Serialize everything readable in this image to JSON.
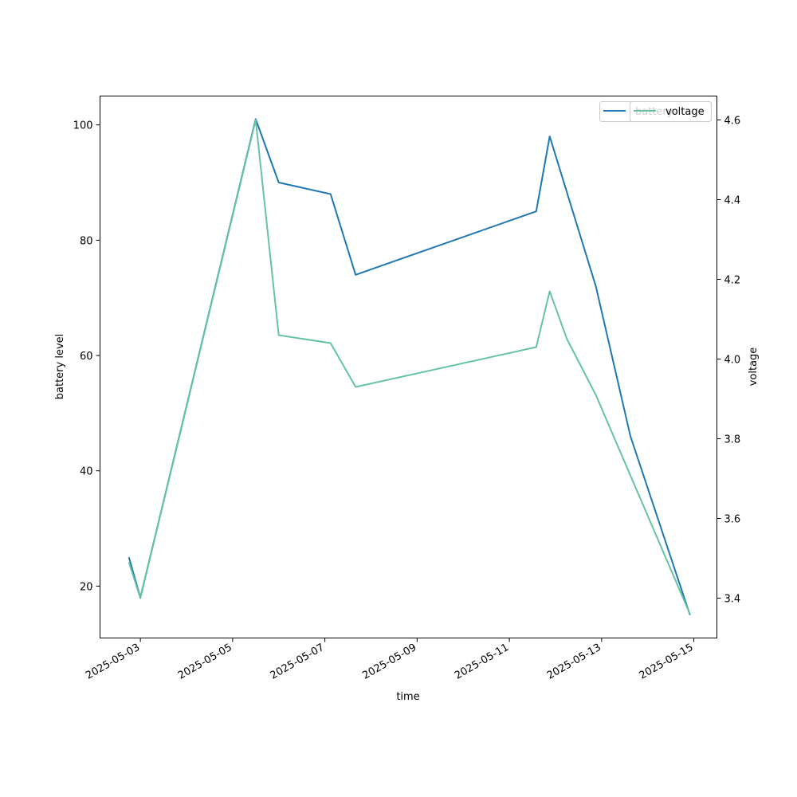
{
  "chart_data": {
    "type": "line",
    "xlabel": "time",
    "ylabel_left": "battery level",
    "ylabel_right": "voltage",
    "x_tick_labels": [
      "2025-05-03",
      "2025-05-05",
      "2025-05-07",
      "2025-05-09",
      "2025-05-11",
      "2025-05-13",
      "2025-05-15"
    ],
    "x_ticks": [
      "2025-05-03T00:00",
      "2025-05-05T00:00",
      "2025-05-07T00:00",
      "2025-05-09T00:00",
      "2025-05-11T00:00",
      "2025-05-13T00:00",
      "2025-05-15T00:00"
    ],
    "xlim": [
      "2025-05-02T03:00",
      "2025-05-15T12:00"
    ],
    "ylim_left": [
      11,
      105
    ],
    "ylim_right": [
      3.3,
      4.66
    ],
    "yticks_left": [
      20,
      40,
      60,
      80,
      100
    ],
    "yticks_right": [
      3.4,
      3.6,
      3.8,
      4.0,
      4.2,
      4.4,
      4.6
    ],
    "yticks_right_labels": [
      "3.4",
      "3.6",
      "3.8",
      "4.0",
      "4.2",
      "4.4",
      "4.6"
    ],
    "legend_placement": "upper right",
    "series": [
      {
        "name": "battery",
        "axis": "left",
        "color": "#1f77b4",
        "x": [
          "2025-05-02T18:00",
          "2025-05-03T00:00",
          "2025-05-05T12:00",
          "2025-05-06T00:00",
          "2025-05-07T03:00",
          "2025-05-07T16:00",
          "2025-05-11T14:00",
          "2025-05-11T21:00",
          "2025-05-12T21:00",
          "2025-05-13T15:00",
          "2025-05-14T22:00"
        ],
        "values": [
          25,
          18,
          101,
          90,
          88,
          74,
          85,
          98,
          72,
          46,
          15
        ]
      },
      {
        "name": "voltage",
        "axis": "right",
        "color": "#66c2a5",
        "x": [
          "2025-05-02T18:00",
          "2025-05-03T00:00",
          "2025-05-05T12:00",
          "2025-05-06T00:00",
          "2025-05-07T03:00",
          "2025-05-07T16:00",
          "2025-05-11T14:00",
          "2025-05-11T21:00",
          "2025-05-12T06:00",
          "2025-05-12T21:00",
          "2025-05-14T22:00"
        ],
        "values": [
          3.49,
          3.4,
          4.6,
          4.06,
          4.04,
          3.93,
          4.03,
          4.17,
          4.05,
          3.91,
          3.36
        ]
      }
    ]
  }
}
